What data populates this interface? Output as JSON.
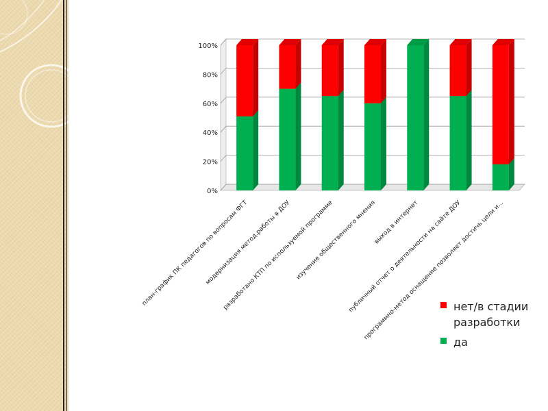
{
  "colors": {
    "yes": "#00b050",
    "no": "#ff0000",
    "sidebar": "#ecd9ad"
  },
  "chart_data": {
    "type": "bar",
    "stacked": true,
    "percent": true,
    "categories": [
      "план-график ПК педагогов по вопросам ФГТ",
      "модернизация метод.работы в ДОУ",
      "разработано КТП по используемой программе",
      "изучение общественного мнения",
      "выход в интернет",
      "публичный отчет о деятельности на сайте ДОУ",
      "программно-метод оснащение позволяет достичь цели и..."
    ],
    "series": [
      {
        "name": "да",
        "values": [
          51,
          70,
          65,
          60,
          100,
          65,
          18
        ],
        "color": "#00b050"
      },
      {
        "name": "нет/в стадии разработки",
        "values": [
          49,
          30,
          35,
          40,
          0,
          35,
          82
        ],
        "color": "#ff0000"
      }
    ],
    "yticks": [
      "0%",
      "20%",
      "40%",
      "60%",
      "80%",
      "100%"
    ],
    "ylim": [
      0,
      100
    ],
    "grid": true,
    "legend": {
      "position": "right",
      "items": [
        {
          "lines": [
            "нет/в стадии",
            "разработки"
          ],
          "color": "#ff0000"
        },
        {
          "lines": [
            "да"
          ],
          "color": "#00b050"
        }
      ]
    }
  }
}
